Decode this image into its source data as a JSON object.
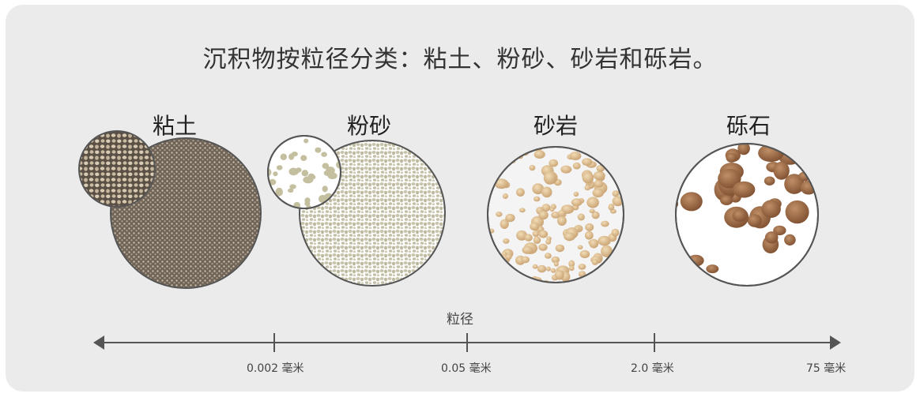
{
  "title": "沉积物按粒径分类：粘土、粉砂、砂岩和砾岩。",
  "categories": [
    {
      "key": "clay",
      "label": "粘土"
    },
    {
      "key": "silt",
      "label": "粉砂"
    },
    {
      "key": "sand",
      "label": "砂岩"
    },
    {
      "key": "gravel",
      "label": "砾石"
    }
  ],
  "axis": {
    "label": "粒径",
    "ticks": [
      {
        "value": "0.002",
        "unit": "毫米"
      },
      {
        "value": "0.05",
        "unit": "毫米"
      },
      {
        "value": "2.0",
        "unit": "毫米"
      },
      {
        "value": "75",
        "unit": "毫米"
      }
    ]
  },
  "colors": {
    "clay": "#8f8373",
    "silt": "#c9c5ad",
    "sand": "#d9bd92",
    "gravel": "#9a6a48",
    "outline": "#555555",
    "axis": "#555555"
  }
}
